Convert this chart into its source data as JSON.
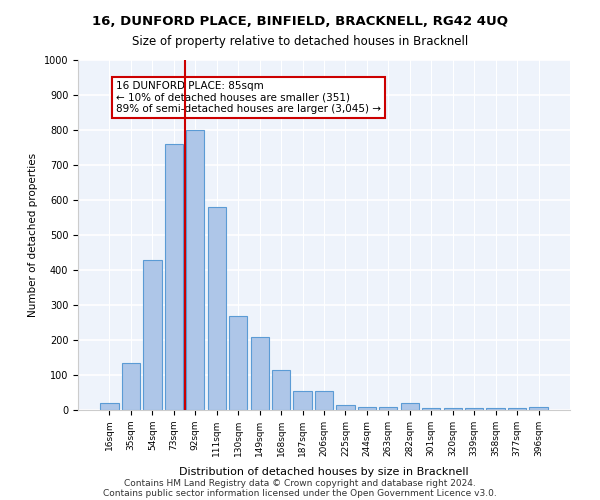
{
  "title1": "16, DUNFORD PLACE, BINFIELD, BRACKNELL, RG42 4UQ",
  "title2": "Size of property relative to detached houses in Bracknell",
  "xlabel": "Distribution of detached houses by size in Bracknell",
  "ylabel": "Number of detached properties",
  "categories": [
    "16sqm",
    "35sqm",
    "54sqm",
    "73sqm",
    "92sqm",
    "111sqm",
    "130sqm",
    "149sqm",
    "168sqm",
    "187sqm",
    "206sqm",
    "225sqm",
    "244sqm",
    "263sqm",
    "282sqm",
    "301sqm",
    "320sqm",
    "339sqm",
    "358sqm",
    "377sqm",
    "396sqm"
  ],
  "values": [
    20,
    135,
    430,
    760,
    800,
    580,
    270,
    210,
    115,
    55,
    55,
    15,
    10,
    10,
    20,
    5,
    5,
    5,
    5,
    5,
    10
  ],
  "bar_color": "#aec6e8",
  "bar_edge_color": "#5b9bd5",
  "background_color": "#eef3fb",
  "grid_color": "#ffffff",
  "vline_x": 4.5,
  "vline_color": "#cc0000",
  "annotation_text": "16 DUNFORD PLACE: 85sqm\n← 10% of detached houses are smaller (351)\n89% of semi-detached houses are larger (3,045) →",
  "annotation_box_color": "#cc0000",
  "footer1": "Contains HM Land Registry data © Crown copyright and database right 2024.",
  "footer2": "Contains public sector information licensed under the Open Government Licence v3.0.",
  "ylim": [
    0,
    1000
  ],
  "yticks": [
    0,
    100,
    200,
    300,
    400,
    500,
    600,
    700,
    800,
    900,
    1000
  ]
}
